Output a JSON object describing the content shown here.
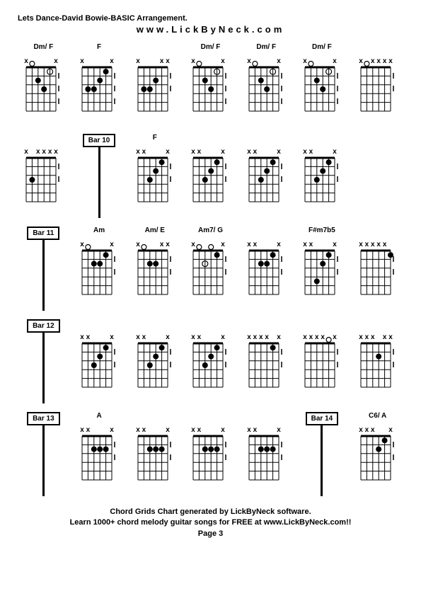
{
  "header": {
    "title": "Lets Dance-David Bowie-BASIC Arrangement.",
    "url": "www.LickByNeck.com"
  },
  "rows": [
    {
      "cells": [
        {
          "type": "chord",
          "label": "Dm/ F",
          "mutes": "x    x",
          "dots": [
            {
              "f": 0,
              "s": 1,
              "o": true
            },
            {
              "f": 2,
              "s": 2
            },
            {
              "f": 3,
              "s": 3
            },
            {
              "f": 1,
              "s": 4,
              "o": true
            }
          ],
          "rightDots": 3
        },
        {
          "type": "chord",
          "label": "F",
          "mutes": "x    x",
          "dots": [
            {
              "f": 3,
              "s": 1
            },
            {
              "f": 3,
              "s": 2
            },
            {
              "f": 2,
              "s": 3
            },
            {
              "f": 1,
              "s": 4
            }
          ],
          "rightDots": 3
        },
        {
          "type": "chord",
          "label": "",
          "mutes": "x   xx",
          "dots": [
            {
              "f": 3,
              "s": 1
            },
            {
              "f": 3,
              "s": 2
            },
            {
              "f": 2,
              "s": 3
            }
          ],
          "rightDots": 2
        },
        {
          "type": "chord",
          "label": "Dm/ F",
          "mutes": "x    x",
          "dots": [
            {
              "f": 0,
              "s": 1,
              "o": true
            },
            {
              "f": 2,
              "s": 2
            },
            {
              "f": 3,
              "s": 3
            },
            {
              "f": 1,
              "s": 4,
              "o": true
            }
          ],
          "rightDots": 3
        },
        {
          "type": "chord",
          "label": "Dm/ F",
          "mutes": "x    x",
          "dots": [
            {
              "f": 0,
              "s": 1,
              "o": true
            },
            {
              "f": 2,
              "s": 2
            },
            {
              "f": 3,
              "s": 3
            },
            {
              "f": 1,
              "s": 4,
              "o": true
            }
          ],
          "rightDots": 3
        },
        {
          "type": "chord",
          "label": "Dm/ F",
          "mutes": "x    x",
          "dots": [
            {
              "f": 0,
              "s": 1,
              "o": true
            },
            {
              "f": 2,
              "s": 2
            },
            {
              "f": 3,
              "s": 3
            },
            {
              "f": 1,
              "s": 4,
              "o": true
            }
          ],
          "rightDots": 3
        },
        {
          "type": "chord",
          "label": "",
          "mutes": "x xxxx",
          "dots": [
            {
              "f": 0,
              "s": 1,
              "o": true
            }
          ],
          "rightDots": 2
        }
      ]
    },
    {
      "cells": [
        {
          "type": "chord",
          "label": "",
          "mutes": "x xxxx",
          "dots": [
            {
              "f": 3,
              "s": 1
            }
          ],
          "rightDots": 2
        },
        {
          "type": "bar",
          "label": "Bar 10"
        },
        {
          "type": "chord",
          "label": "F",
          "mutes": "xx   x",
          "dots": [
            {
              "f": 3,
              "s": 2
            },
            {
              "f": 2,
              "s": 3
            },
            {
              "f": 1,
              "s": 4
            }
          ],
          "rightDots": 2
        },
        {
          "type": "chord",
          "label": "",
          "mutes": "xx   x",
          "dots": [
            {
              "f": 3,
              "s": 2
            },
            {
              "f": 2,
              "s": 3
            },
            {
              "f": 1,
              "s": 4
            }
          ],
          "rightDots": 2
        },
        {
          "type": "chord",
          "label": "",
          "mutes": "xx   x",
          "dots": [
            {
              "f": 3,
              "s": 2
            },
            {
              "f": 2,
              "s": 3
            },
            {
              "f": 1,
              "s": 4
            }
          ],
          "rightDots": 2
        },
        {
          "type": "chord",
          "label": "",
          "mutes": "xx   x",
          "dots": [
            {
              "f": 3,
              "s": 2
            },
            {
              "f": 2,
              "s": 3
            },
            {
              "f": 1,
              "s": 4
            }
          ],
          "rightDots": 2
        },
        {
          "type": "empty"
        }
      ]
    },
    {
      "cells": [
        {
          "type": "bar",
          "label": "Bar 11"
        },
        {
          "type": "chord",
          "label": "Am",
          "mutes": "x    x",
          "dots": [
            {
              "f": 0,
              "s": 1,
              "o": true
            },
            {
              "f": 2,
              "s": 2
            },
            {
              "f": 2,
              "s": 3
            },
            {
              "f": 1,
              "s": 4
            }
          ],
          "rightDots": 2
        },
        {
          "type": "chord",
          "label": "Am/ E",
          "mutes": "x   xx",
          "dots": [
            {
              "f": 0,
              "s": 1,
              "o": true
            },
            {
              "f": 2,
              "s": 2
            },
            {
              "f": 2,
              "s": 3
            }
          ],
          "rightDots": 2
        },
        {
          "type": "chord",
          "label": "Am7/ G",
          "mutes": "x    x",
          "dots": [
            {
              "f": 0,
              "s": 1,
              "o": true
            },
            {
              "f": 2,
              "s": 2,
              "o": true
            },
            {
              "f": 0,
              "s": 3,
              "o": true
            },
            {
              "f": 1,
              "s": 4
            }
          ],
          "rightDots": 2
        },
        {
          "type": "chord",
          "label": "",
          "mutes": "xx   x",
          "dots": [
            {
              "f": 2,
              "s": 2
            },
            {
              "f": 2,
              "s": 3
            },
            {
              "f": 1,
              "s": 4
            }
          ],
          "rightDots": 2
        },
        {
          "type": "chord",
          "label": "F#m7b5",
          "mutes": "xx   x",
          "dots": [
            {
              "f": 4,
              "s": 2
            },
            {
              "f": 2,
              "s": 3
            },
            {
              "f": 1,
              "s": 4
            }
          ],
          "rightDots": 2
        },
        {
          "type": "chord",
          "label": "",
          "mutes": "xxxxx ",
          "dots": [
            {
              "f": 1,
              "s": 5
            }
          ],
          "rightDots": 2
        }
      ]
    },
    {
      "cells": [
        {
          "type": "bar",
          "label": "Bar 12"
        },
        {
          "type": "chord",
          "label": "",
          "mutes": "xx   x",
          "dots": [
            {
              "f": 3,
              "s": 2
            },
            {
              "f": 2,
              "s": 3
            },
            {
              "f": 1,
              "s": 4
            }
          ],
          "rightDots": 2
        },
        {
          "type": "chord",
          "label": "",
          "mutes": "xx   x",
          "dots": [
            {
              "f": 3,
              "s": 2
            },
            {
              "f": 2,
              "s": 3
            },
            {
              "f": 1,
              "s": 4
            }
          ],
          "rightDots": 2
        },
        {
          "type": "chord",
          "label": "",
          "mutes": "xx   x",
          "dots": [
            {
              "f": 3,
              "s": 2
            },
            {
              "f": 2,
              "s": 3
            },
            {
              "f": 1,
              "s": 4
            }
          ],
          "rightDots": 2
        },
        {
          "type": "chord",
          "label": "",
          "mutes": "xxxx x",
          "dots": [
            {
              "f": 1,
              "s": 4
            }
          ],
          "rightDots": 2
        },
        {
          "type": "chord",
          "label": "",
          "mutes": "xxxx x",
          "dots": [
            {
              "f": 0,
              "s": 4,
              "o": true
            }
          ],
          "rightDots": 2
        },
        {
          "type": "chord",
          "label": "",
          "mutes": "xxx xx",
          "dots": [
            {
              "f": 2,
              "s": 3
            }
          ],
          "rightDots": 2
        }
      ]
    },
    {
      "cells": [
        {
          "type": "bar",
          "label": "Bar 13"
        },
        {
          "type": "chord",
          "label": "A",
          "mutes": "xx   x",
          "dots": [
            {
              "f": 2,
              "s": 2
            },
            {
              "f": 2,
              "s": 3
            },
            {
              "f": 2,
              "s": 4
            }
          ],
          "rightDots": 2
        },
        {
          "type": "chord",
          "label": "",
          "mutes": "xx   x",
          "dots": [
            {
              "f": 2,
              "s": 2
            },
            {
              "f": 2,
              "s": 3
            },
            {
              "f": 2,
              "s": 4
            }
          ],
          "rightDots": 2
        },
        {
          "type": "chord",
          "label": "",
          "mutes": "xx   x",
          "dots": [
            {
              "f": 2,
              "s": 2
            },
            {
              "f": 2,
              "s": 3
            },
            {
              "f": 2,
              "s": 4
            }
          ],
          "rightDots": 2
        },
        {
          "type": "chord",
          "label": "",
          "mutes": "xx   x",
          "dots": [
            {
              "f": 2,
              "s": 2
            },
            {
              "f": 2,
              "s": 3
            },
            {
              "f": 2,
              "s": 4
            }
          ],
          "rightDots": 2
        },
        {
          "type": "bar",
          "label": "Bar 14"
        },
        {
          "type": "chord",
          "label": "C6/ A",
          "mutes": "xxx  x",
          "dots": [
            {
              "f": 2,
              "s": 3
            },
            {
              "f": 1,
              "s": 4
            }
          ],
          "rightDots": 2
        }
      ]
    }
  ],
  "footer": {
    "line1": "Chord Grids Chart generated by LickByNeck software.",
    "line2": "Learn 1000+ chord melody guitar songs for FREE at www.LickByNeck.com!!",
    "line3": "Page 3"
  },
  "style": {
    "background": "#ffffff",
    "grid_color": "#000000",
    "dot_color": "#000000",
    "frets": 5,
    "strings": 6
  }
}
